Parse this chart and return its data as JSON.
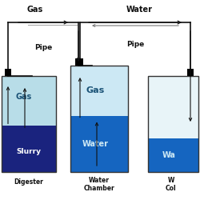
{
  "bg_color": "#ffffff",
  "title_gas": "Gas",
  "title_water": "Water",
  "label_pipe1": "Pipe",
  "label_pipe2": "Pipe",
  "label_digester": "Digester",
  "label_water_chamber": "Water\nChamber",
  "label_col": "W\nCol",
  "tank1_label_gas": "Gas",
  "tank1_label_slurry": "Slurry",
  "tank2_label_gas": "Gas",
  "tank2_label_water": "Water",
  "tank3_label_water": "Wa",
  "tank_border": "#333333",
  "tank1_gas_color": "#b8dde8",
  "tank1_slurry_color": "#1a237e",
  "tank2_gas_color": "#cce8f4",
  "tank2_water_color": "#1565c0",
  "tank3_gas_color": "#e8f4f8",
  "tank3_water_color": "#1565c0",
  "arrow_color": "#111111",
  "pipe_color": "#111111",
  "text_color_dark": "#111111",
  "text_color_light": "#ffffff",
  "text_color_gas": "#1a5276",
  "figsize": [
    2.5,
    2.5
  ],
  "dpi": 100
}
